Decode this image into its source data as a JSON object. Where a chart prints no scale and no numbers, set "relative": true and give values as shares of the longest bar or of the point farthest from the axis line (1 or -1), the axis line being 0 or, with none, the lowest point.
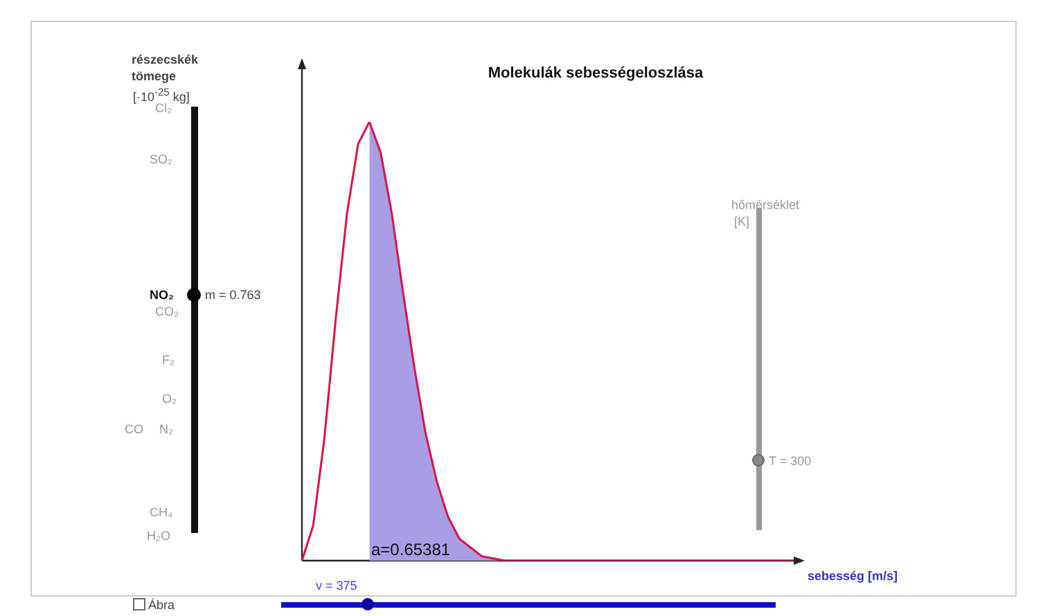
{
  "chart_data": {
    "type": "line",
    "title": "Molekulák sebességeloszlása",
    "xlabel": "sebesség [m/s]",
    "relative": true,
    "legend": false,
    "marker": "none",
    "categories": [
      null,
      null,
      null,
      null,
      null,
      null,
      null,
      null,
      null,
      null,
      null,
      null,
      null,
      null,
      null,
      null,
      null,
      null,
      null,
      null,
      null,
      null,
      null,
      null,
      null,
      null,
      null,
      null,
      null,
      null,
      null,
      null,
      null,
      null,
      null,
      null,
      null,
      null,
      null,
      null,
      null,
      null,
      null,
      null,
      null
    ],
    "series": [
      {
        "type": "line",
        "color": "#dd1144",
        "values": [
          0,
          0.08,
          0.28,
          0.55,
          0.79,
          0.95,
          1,
          0.93,
          0.79,
          0.61,
          0.44,
          0.29,
          0.18,
          0.1,
          0.05,
          0.03,
          0.01,
          0.005,
          0,
          0,
          0,
          0,
          0,
          0,
          0,
          0,
          0,
          0,
          0,
          0,
          0,
          0,
          0,
          0,
          0,
          0,
          0,
          0,
          0,
          0,
          0,
          0,
          0,
          0,
          0
        ]
      },
      {
        "type": "area",
        "color": "#a99de6",
        "values": [
          null,
          null,
          null,
          null,
          null,
          null,
          1,
          0.93,
          0.79,
          0.61,
          0.44,
          0.29,
          0.18,
          0.1,
          0.05,
          0.03,
          0.01,
          0.005,
          0,
          0,
          0,
          0,
          0,
          0,
          0,
          0,
          0,
          0,
          0,
          0,
          0,
          0,
          0,
          0,
          0,
          0,
          0,
          0,
          0,
          0,
          0,
          0,
          0,
          0,
          0
        ]
      }
    ],
    "annotations": [
      "a=0.65381",
      "részecskék",
      "tömege",
      "[·10$^{-25}$ kg]",
      "m = 0.763",
      "Cl₂",
      "SO₂",
      "NO₂",
      "CO₂",
      "F₂",
      "O₂",
      "CO",
      "N₂",
      "CH₄",
      "H₂O",
      "hőmérséklet",
      "[K]",
      "T = 300",
      "v = 375",
      "Ábra"
    ]
  }
}
